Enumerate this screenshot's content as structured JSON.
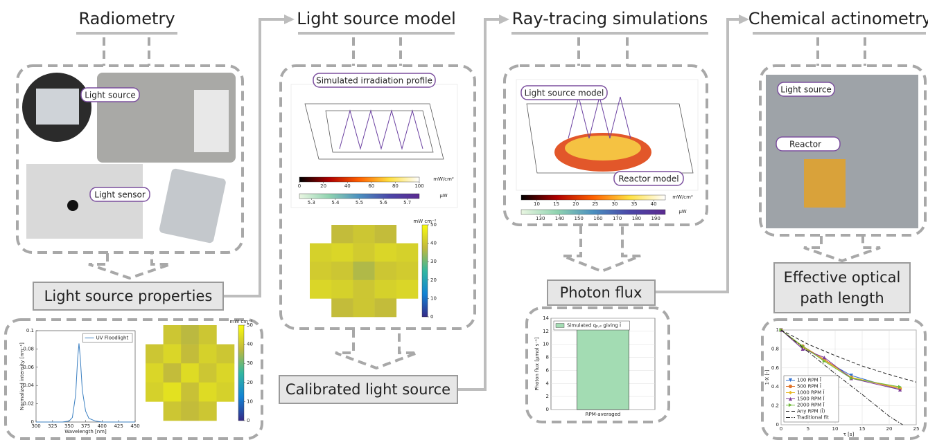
{
  "stages": [
    "Radiometry",
    "Light source model",
    "Ray-tracing simulations",
    "Chemical actinometry"
  ],
  "outputs": {
    "light_source_properties": "Light source properties",
    "calibrated_light_source": "Calibrated light source",
    "photon_flux": "Photon flux",
    "effective_optical_path_length": [
      "Effective optical",
      "path length"
    ]
  },
  "callouts": [
    "Light source",
    "Light sensor",
    "Simulated irradiation profile",
    "Light source model",
    "Reactor model",
    "Light source",
    "Reactor"
  ],
  "render_colorbars": [
    {
      "label": "mW/cm²",
      "lim": [
        0,
        100
      ],
      "ticks": [
        0,
        20,
        40,
        60,
        80,
        100
      ],
      "colormap": "hot"
    },
    {
      "label": "μW",
      "lim": [
        5.25,
        5.75
      ],
      "ticks": [
        5.3,
        5.4,
        5.5,
        5.6,
        5.7
      ],
      "colormap": "green-purple"
    },
    {
      "label": "mW/cm²",
      "lim": [
        6,
        43
      ],
      "ticks": [
        10,
        15,
        20,
        25,
        30,
        35,
        40
      ],
      "colormap": "hot"
    },
    {
      "label": "μW",
      "lim": [
        120,
        195
      ],
      "ticks": [
        130,
        140,
        150,
        160,
        170,
        180,
        190
      ],
      "colormap": "green-purple"
    }
  ],
  "chart_data": [
    {
      "type": "line",
      "xlabel": "Wavelength [nm]",
      "ylabel": "Normalized intensity [nm⁻¹]",
      "x": [
        300,
        340,
        350,
        355,
        360,
        363,
        365,
        367,
        370,
        375,
        380,
        390,
        400,
        450
      ],
      "series": [
        {
          "name": "UV Floodlight",
          "color": "#3a7fc1",
          "values": [
            0,
            0,
            0.001,
            0.005,
            0.03,
            0.07,
            0.086,
            0.07,
            0.035,
            0.012,
            0.004,
            0.001,
            0,
            0
          ]
        }
      ],
      "xlim": [
        300,
        450
      ],
      "xticks": [
        300,
        325,
        350,
        375,
        400,
        425,
        450
      ],
      "ylim": [
        0,
        0.1
      ],
      "yticks": [
        0,
        0.02,
        0.04,
        0.06,
        0.08,
        0.1
      ],
      "grid": false,
      "legend": "upper right"
    },
    {
      "type": "heatmap",
      "colorbar_label": "mW cm⁻²",
      "colormap": "parula",
      "zlim": [
        0,
        50
      ],
      "zticks": [
        0,
        10,
        20,
        30,
        40,
        50
      ],
      "values": [
        [
          null,
          40,
          37,
          40,
          null
        ],
        [
          40,
          43,
          38,
          42,
          40
        ],
        [
          43,
          38,
          44,
          40,
          43
        ],
        [
          42,
          45,
          39,
          44,
          42
        ],
        [
          null,
          40,
          38,
          40,
          null
        ]
      ]
    },
    {
      "type": "heatmap",
      "colorbar_label": "mW cm⁻²",
      "colormap": "parula",
      "zlim": [
        0,
        50
      ],
      "zticks": [
        0,
        10,
        20,
        30,
        40,
        50
      ],
      "values": [
        [
          null,
          38,
          40,
          38,
          null
        ],
        [
          42,
          43,
          41,
          43,
          42
        ],
        [
          41,
          40,
          36,
          40,
          41
        ],
        [
          43,
          42,
          40,
          42,
          43
        ],
        [
          null,
          38,
          40,
          38,
          null
        ]
      ]
    },
    {
      "type": "bar",
      "ylabel": "Photon flux [μmol s⁻¹]",
      "categories": [
        "RPM-averaged"
      ],
      "series": [
        {
          "name": "Simulated qₚ,ₑ giving Ī",
          "color": "#a3dcb3",
          "values": [
            12.5
          ]
        }
      ],
      "ylim": [
        0,
        14
      ],
      "yticks": [
        0,
        2,
        4,
        6,
        8,
        10,
        12,
        14
      ],
      "grid": true,
      "legend": "upper left"
    },
    {
      "type": "line",
      "xlabel": "τ [s]",
      "ylabel": "1-X [-]",
      "series": [
        {
          "name": "100 RPM Ī",
          "color": "#2f6fd0",
          "marker": "triangle-down",
          "dash": "solid",
          "x": [
            0,
            4,
            8,
            13,
            22
          ],
          "values": [
            1,
            0.82,
            0.68,
            0.52,
            0.37
          ]
        },
        {
          "name": "500 RPM Ī",
          "color": "#e0742b",
          "marker": "circle",
          "dash": "solid",
          "x": [
            0,
            4,
            8,
            13,
            22
          ],
          "values": [
            1,
            0.83,
            0.69,
            0.5,
            0.38
          ]
        },
        {
          "name": "1000 RPM Ī",
          "color": "#e8b923",
          "marker": "diamond",
          "dash": "solid",
          "x": [
            0,
            4,
            8,
            13,
            22
          ],
          "values": [
            1,
            0.82,
            0.68,
            0.5,
            0.39
          ]
        },
        {
          "name": "1500 RPM Ī",
          "color": "#7d3c98",
          "marker": "triangle-up",
          "dash": "solid",
          "x": [
            0,
            4,
            8,
            13,
            22
          ],
          "values": [
            1,
            0.8,
            0.71,
            0.49,
            0.37
          ]
        },
        {
          "name": "2000 RPM Ī",
          "color": "#6fb83a",
          "marker": "triangle-right",
          "dash": "solid",
          "x": [
            0,
            4,
            8,
            13,
            22
          ],
          "values": [
            1,
            0.83,
            0.67,
            0.49,
            0.4
          ]
        },
        {
          "name": "Any RPM (Ī)",
          "color": "#222222",
          "marker": null,
          "dash": "dashed",
          "x": [
            0,
            5,
            10,
            15,
            20,
            25
          ],
          "values": [
            1,
            0.85,
            0.73,
            0.62,
            0.53,
            0.45
          ]
        },
        {
          "name": "Traditional fit",
          "color": "#222222",
          "marker": null,
          "dash": "dashdot",
          "x": [
            0,
            5,
            10,
            15,
            20,
            22.5
          ],
          "values": [
            1,
            0.77,
            0.54,
            0.32,
            0.09,
            0
          ]
        }
      ],
      "xlim": [
        0,
        25
      ],
      "xticks": [
        0,
        5,
        10,
        15,
        20,
        25
      ],
      "ylim": [
        0,
        1
      ],
      "yticks": [
        0,
        0.2,
        0.4,
        0.6,
        0.8,
        1
      ],
      "grid": true,
      "legend": "lower left"
    }
  ]
}
